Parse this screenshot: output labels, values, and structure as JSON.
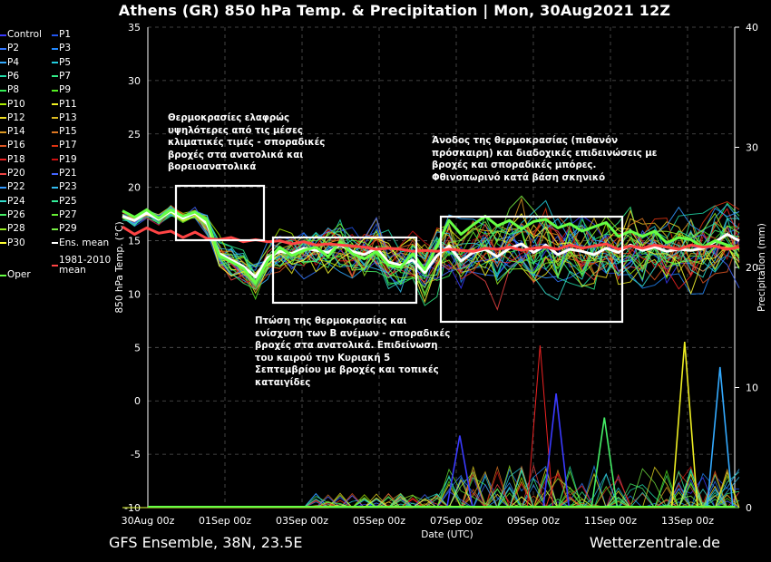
{
  "title": "Athens  (GR)  850 hPa Temp. & Precipitation | Mon, 30Aug2021 12Z",
  "footer": {
    "left": "GFS Ensemble, 38N, 23.5E",
    "right": "Wetterzentrale.de"
  },
  "annotations": {
    "a1": [
      "Θερμοκρασίες ελαφρώς",
      "υψηλότερες από τις μέσες",
      "κλιματικές τιμές - σποραδικές",
      "βροχές στα ανατολικά και",
      "βορειοανατολικά"
    ],
    "a2": [
      "Πτώση της θερμοκρασίες και",
      "ενίσχυση των Β ανέμων - σποραδικές",
      "βροχές στα ανατολικά. Επιδείνωση",
      "του καιρού την Κυριακή 5",
      "Σεπτεμβρίου με βροχές και τοπικές",
      "καταιγίδες"
    ],
    "a3": [
      "Άνοδος της θερμοκρασίας (πιθανόν",
      "πρόσκαιρη) και διαδοχικές επιδεινώσεις με",
      "βροχές και σποραδικές μπόρες.",
      "Φθινοπωρινό κατά βάση σκηνικό"
    ]
  },
  "legend": [
    {
      "label": "Control",
      "color": "#3a3aff"
    },
    {
      "label": "P1",
      "color": "#2255ee"
    },
    {
      "label": "P2",
      "color": "#3377ff"
    },
    {
      "label": "P3",
      "color": "#2288ff"
    },
    {
      "label": "P4",
      "color": "#33aaff"
    },
    {
      "label": "P5",
      "color": "#22ccdd"
    },
    {
      "label": "P6",
      "color": "#22ddaa"
    },
    {
      "label": "P7",
      "color": "#33ee88"
    },
    {
      "label": "P8",
      "color": "#33ee55"
    },
    {
      "label": "P9",
      "color": "#55ee22"
    },
    {
      "label": "P10",
      "color": "#aaee00"
    },
    {
      "label": "P11",
      "color": "#eeee22"
    },
    {
      "label": "P12",
      "color": "#eedd22"
    },
    {
      "label": "P13",
      "color": "#ddbb22"
    },
    {
      "label": "P14",
      "color": "#dd9922"
    },
    {
      "label": "P15",
      "color": "#dd7722"
    },
    {
      "label": "P16",
      "color": "#dd5522"
    },
    {
      "label": "P17",
      "color": "#dd3311"
    },
    {
      "label": "P18",
      "color": "#ee2222"
    },
    {
      "label": "P19",
      "color": "#cc1111"
    },
    {
      "label": "P20",
      "color": "#ee4444"
    },
    {
      "label": "P21",
      "color": "#4466ff"
    },
    {
      "label": "P22",
      "color": "#3399ff"
    },
    {
      "label": "P23",
      "color": "#33bbee"
    },
    {
      "label": "P24",
      "color": "#33ddcc"
    },
    {
      "label": "P25",
      "color": "#33ee99"
    },
    {
      "label": "P26",
      "color": "#44ee66"
    },
    {
      "label": "P27",
      "color": "#66ee33"
    },
    {
      "label": "P28",
      "color": "#99ee22"
    },
    {
      "label": "P29",
      "color": "#77ee44"
    },
    {
      "label": "P30",
      "color": "#ffff33"
    },
    {
      "label": "Ens. mean",
      "color": "#ffffff"
    },
    {
      "label": "Oper",
      "color": "#66ff44"
    },
    {
      "label": "1981-2010 mean",
      "color": "#ff4444"
    }
  ],
  "chart_data": {
    "type": "line",
    "xlabel": "Date (UTC)",
    "ylabel": "850 hPa Temp. (°C)",
    "ylabel2": "Precipitation (mm)",
    "ylim": [
      -10,
      35
    ],
    "y2lim": [
      0,
      40
    ],
    "xlim_hours": [
      0,
      384
    ],
    "x_ticks": [
      "30Aug 00z",
      "01Sep 00z",
      "03Sep 00z",
      "05Sep 00z",
      "07Sep 00z",
      "09Sep 00z",
      "11Sep 00z",
      "13Sep 00z"
    ],
    "y_ticks": [
      35,
      30,
      25,
      20,
      15,
      10,
      5,
      0,
      -5,
      -10
    ],
    "y2_ticks": [
      40,
      30,
      20,
      10,
      0
    ],
    "grid": true,
    "series": [
      {
        "name": "Ens. mean",
        "color": "#ffffff",
        "values": [
          17.3,
          16.9,
          17.6,
          17.0,
          17.8,
          17.1,
          17.6,
          16.6,
          13.8,
          13.2,
          12.6,
          11.6,
          13.4,
          14.0,
          13.8,
          14.3,
          14.1,
          13.9,
          14.6,
          14.0,
          13.7,
          14.3,
          13.0,
          12.7,
          13.2,
          12.0,
          13.6,
          14.5,
          13.1,
          13.9,
          14.2,
          13.5,
          14.3,
          14.7,
          13.9,
          14.6,
          13.7,
          14.2,
          14.0,
          13.7,
          14.3,
          13.9,
          14.6,
          14.1,
          14.4,
          14.0,
          14.2,
          14.1,
          14.3,
          14.9,
          15.6,
          15.0
        ]
      },
      {
        "name": "Oper",
        "color": "#66ff44",
        "values": [
          17.8,
          17.2,
          17.9,
          17.1,
          17.9,
          17.3,
          17.7,
          16.9,
          13.6,
          13.0,
          12.4,
          11.0,
          13.1,
          14.4,
          13.6,
          14.1,
          14.4,
          13.5,
          14.9,
          13.8,
          13.3,
          14.0,
          12.7,
          12.5,
          13.8,
          12.3,
          14.5,
          16.9,
          15.6,
          16.5,
          17.3,
          16.4,
          16.9,
          16.1,
          16.8,
          17.0,
          16.2,
          16.6,
          15.9,
          16.3,
          16.7,
          15.4,
          15.9,
          15.4,
          15.9,
          14.8,
          15.3,
          15.1,
          14.4,
          15.0,
          14.6,
          14.2
        ]
      },
      {
        "name": "1981-2010 mean",
        "color": "#ff4444",
        "values": [
          16.3,
          15.6,
          16.2,
          15.7,
          15.9,
          15.3,
          15.8,
          15.2,
          15.1,
          15.3,
          14.9,
          15.1,
          14.9,
          15.0,
          14.7,
          14.9,
          14.6,
          14.7,
          14.6,
          14.5,
          14.4,
          14.2,
          14.3,
          14.2,
          14.0,
          14.1,
          14.0,
          14.2,
          14.1,
          14.0,
          14.3,
          14.2,
          14.4,
          14.1,
          14.3,
          14.4,
          14.2,
          14.6,
          14.3,
          14.5,
          14.7,
          14.2,
          14.5,
          14.3,
          14.6,
          14.4,
          14.2,
          14.6,
          14.4,
          14.5,
          14.2,
          14.4
        ]
      }
    ],
    "ensemble_spread_note": "",
    "precip_peaks_mm": [
      {
        "hour": 210,
        "value": 6.0
      },
      {
        "hour": 260,
        "value": 13.5
      },
      {
        "hour": 270,
        "value": 9.5
      },
      {
        "hour": 300,
        "value": 7.5
      },
      {
        "hour": 350,
        "value": 13.8
      },
      {
        "hour": 372,
        "value": 11.7
      }
    ]
  }
}
